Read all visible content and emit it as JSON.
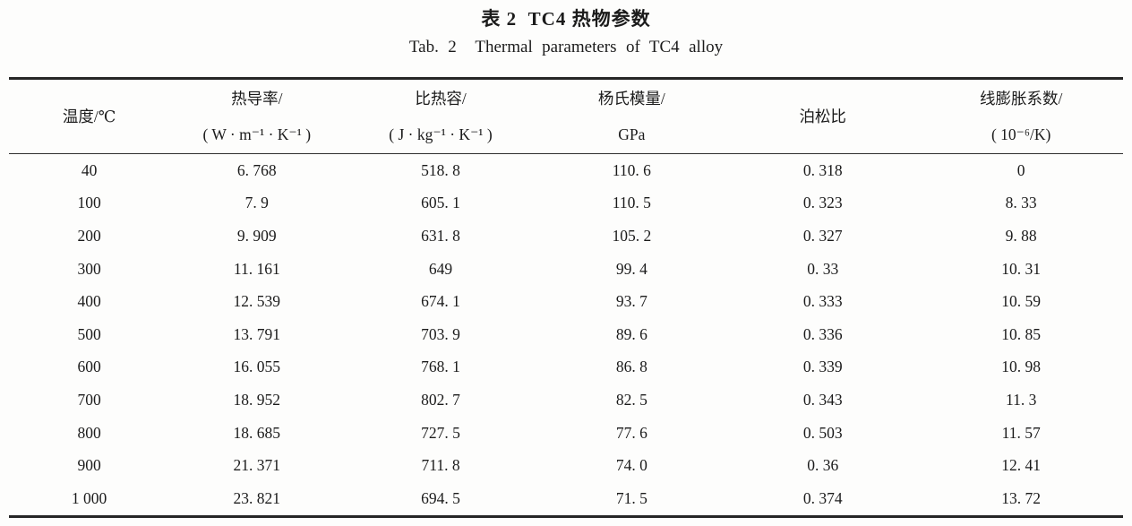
{
  "captions": {
    "zh": "表 2  TC4 热物参数",
    "en": "Tab. 2  Thermal parameters of TC4 alloy"
  },
  "table": {
    "columns": [
      {
        "line1": "温度/℃",
        "line2": ""
      },
      {
        "line1": "热导率/",
        "line2": "( W · m⁻¹ · K⁻¹ )"
      },
      {
        "line1": "比热容/",
        "line2": "( J · kg⁻¹ · K⁻¹ )"
      },
      {
        "line1": "杨氏模量/",
        "line2": "GPa"
      },
      {
        "line1": "泊松比",
        "line2": ""
      },
      {
        "line1": "线膨胀系数/",
        "line2": "( 10⁻⁶/K)"
      }
    ],
    "rows": [
      [
        "40",
        "6. 768",
        "518. 8",
        "110. 6",
        "0. 318",
        "0"
      ],
      [
        "100",
        "7. 9",
        "605. 1",
        "110. 5",
        "0. 323",
        "8. 33"
      ],
      [
        "200",
        "9. 909",
        "631. 8",
        "105. 2",
        "0. 327",
        "9. 88"
      ],
      [
        "300",
        "11. 161",
        "649",
        "99. 4",
        "0. 33",
        "10. 31"
      ],
      [
        "400",
        "12. 539",
        "674. 1",
        "93. 7",
        "0. 333",
        "10. 59"
      ],
      [
        "500",
        "13. 791",
        "703. 9",
        "89. 6",
        "0. 336",
        "10. 85"
      ],
      [
        "600",
        "16. 055",
        "768. 1",
        "86. 8",
        "0. 339",
        "10. 98"
      ],
      [
        "700",
        "18. 952",
        "802. 7",
        "82. 5",
        "0. 343",
        "11. 3"
      ],
      [
        "800",
        "18. 685",
        "727. 5",
        "77. 6",
        "0. 503",
        "11. 57"
      ],
      [
        "900",
        "21. 371",
        "711. 8",
        "74. 0",
        "0. 36",
        "12. 41"
      ],
      [
        "1 000",
        "23. 821",
        "694. 5",
        "71. 5",
        "0. 374",
        "13. 72"
      ]
    ]
  }
}
